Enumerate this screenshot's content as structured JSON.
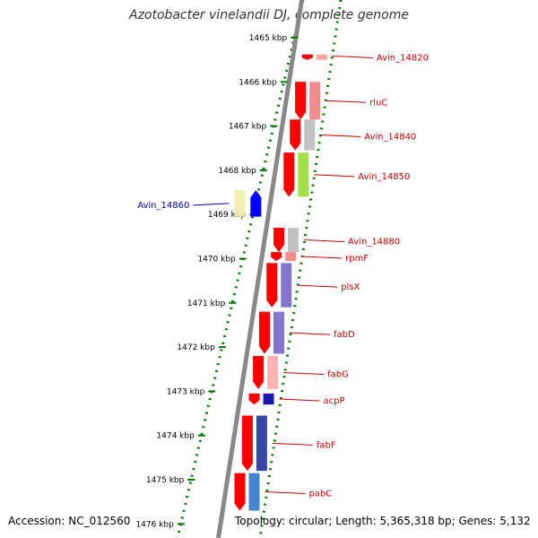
{
  "title": "Azotobacter vinelandii DJ, complete genome",
  "footer": {
    "accession": "Accession: NC_012560",
    "summary": "Topology: circular; Length: 5,365,318 bp; Genes: 5,132"
  },
  "colors": {
    "gene_red": "#ff0000",
    "gene_blue": "#0000ff",
    "gene_navy": "#000088",
    "label_red": "#cc0000",
    "label_blue": "#0000cc",
    "ticks_green": "#007700",
    "backbone": "#888888"
  },
  "scale": {
    "ticks": [
      {
        "kbp": 1465,
        "label": "1465 kbp"
      },
      {
        "kbp": 1466,
        "label": "1466 kbp"
      },
      {
        "kbp": 1467,
        "label": "1467 kbp"
      },
      {
        "kbp": 1468,
        "label": "1468 kbp"
      },
      {
        "kbp": 1469,
        "label": "1469 kbp"
      },
      {
        "kbp": 1470,
        "label": "1470 kbp"
      },
      {
        "kbp": 1471,
        "label": "1471 kbp"
      },
      {
        "kbp": 1472,
        "label": "1472 kbp"
      },
      {
        "kbp": 1473,
        "label": "1473 kbp"
      },
      {
        "kbp": 1474,
        "label": "1474 kbp"
      },
      {
        "kbp": 1475,
        "label": "1475 kbp"
      },
      {
        "kbp": 1476,
        "label": "1476 kbp"
      }
    ]
  },
  "genes": [
    {
      "name": "Avin_14820",
      "start_kbp": 1465.38,
      "end_kbp": 1465.45,
      "strand": "-",
      "cog_color": "#ff9999",
      "labeled": true
    },
    {
      "name": "rluC",
      "start_kbp": 1466.0,
      "end_kbp": 1466.85,
      "strand": "-",
      "cog_color": "#f08080",
      "labeled": true
    },
    {
      "name": "Avin_14840",
      "start_kbp": 1466.85,
      "end_kbp": 1467.55,
      "strand": "-",
      "cog_color": "#bbbbbb",
      "labeled": true
    },
    {
      "name": "Avin_14850",
      "start_kbp": 1467.6,
      "end_kbp": 1468.6,
      "strand": "-",
      "cog_color": "#99dd33",
      "labeled": true
    },
    {
      "name": "Avin_14860",
      "start_kbp": 1468.45,
      "end_kbp": 1469.05,
      "strand": "+",
      "cog_color": "#eeeeaa",
      "labeled": true
    },
    {
      "name": "Avin_14880",
      "start_kbp": 1469.3,
      "end_kbp": 1469.85,
      "strand": "-",
      "cog_color": "#bbbbbb",
      "labeled": true
    },
    {
      "name": "rpmF",
      "start_kbp": 1469.85,
      "end_kbp": 1470.05,
      "strand": "-",
      "cog_color": "#f08080",
      "labeled": true
    },
    {
      "name": "plsX",
      "start_kbp": 1470.1,
      "end_kbp": 1471.1,
      "strand": "-",
      "cog_color": "#7766cc",
      "labeled": true
    },
    {
      "name": "fabD",
      "start_kbp": 1471.2,
      "end_kbp": 1472.15,
      "strand": "-",
      "cog_color": "#7766cc",
      "labeled": true
    },
    {
      "name": "fabG",
      "start_kbp": 1472.2,
      "end_kbp": 1472.95,
      "strand": "-",
      "cog_color": "#ffaaaa",
      "labeled": true
    },
    {
      "name": "acpP",
      "start_kbp": 1473.05,
      "end_kbp": 1473.3,
      "strand": "-",
      "cog_color": "#0000aa",
      "labeled": true
    },
    {
      "name": "fabF",
      "start_kbp": 1473.55,
      "end_kbp": 1474.8,
      "strand": "-",
      "cog_color": "#223399",
      "labeled": true
    },
    {
      "name": "pabC",
      "start_kbp": 1474.85,
      "end_kbp": 1475.7,
      "strand": "-",
      "cog_color": "#3377cc",
      "labeled": true
    }
  ]
}
